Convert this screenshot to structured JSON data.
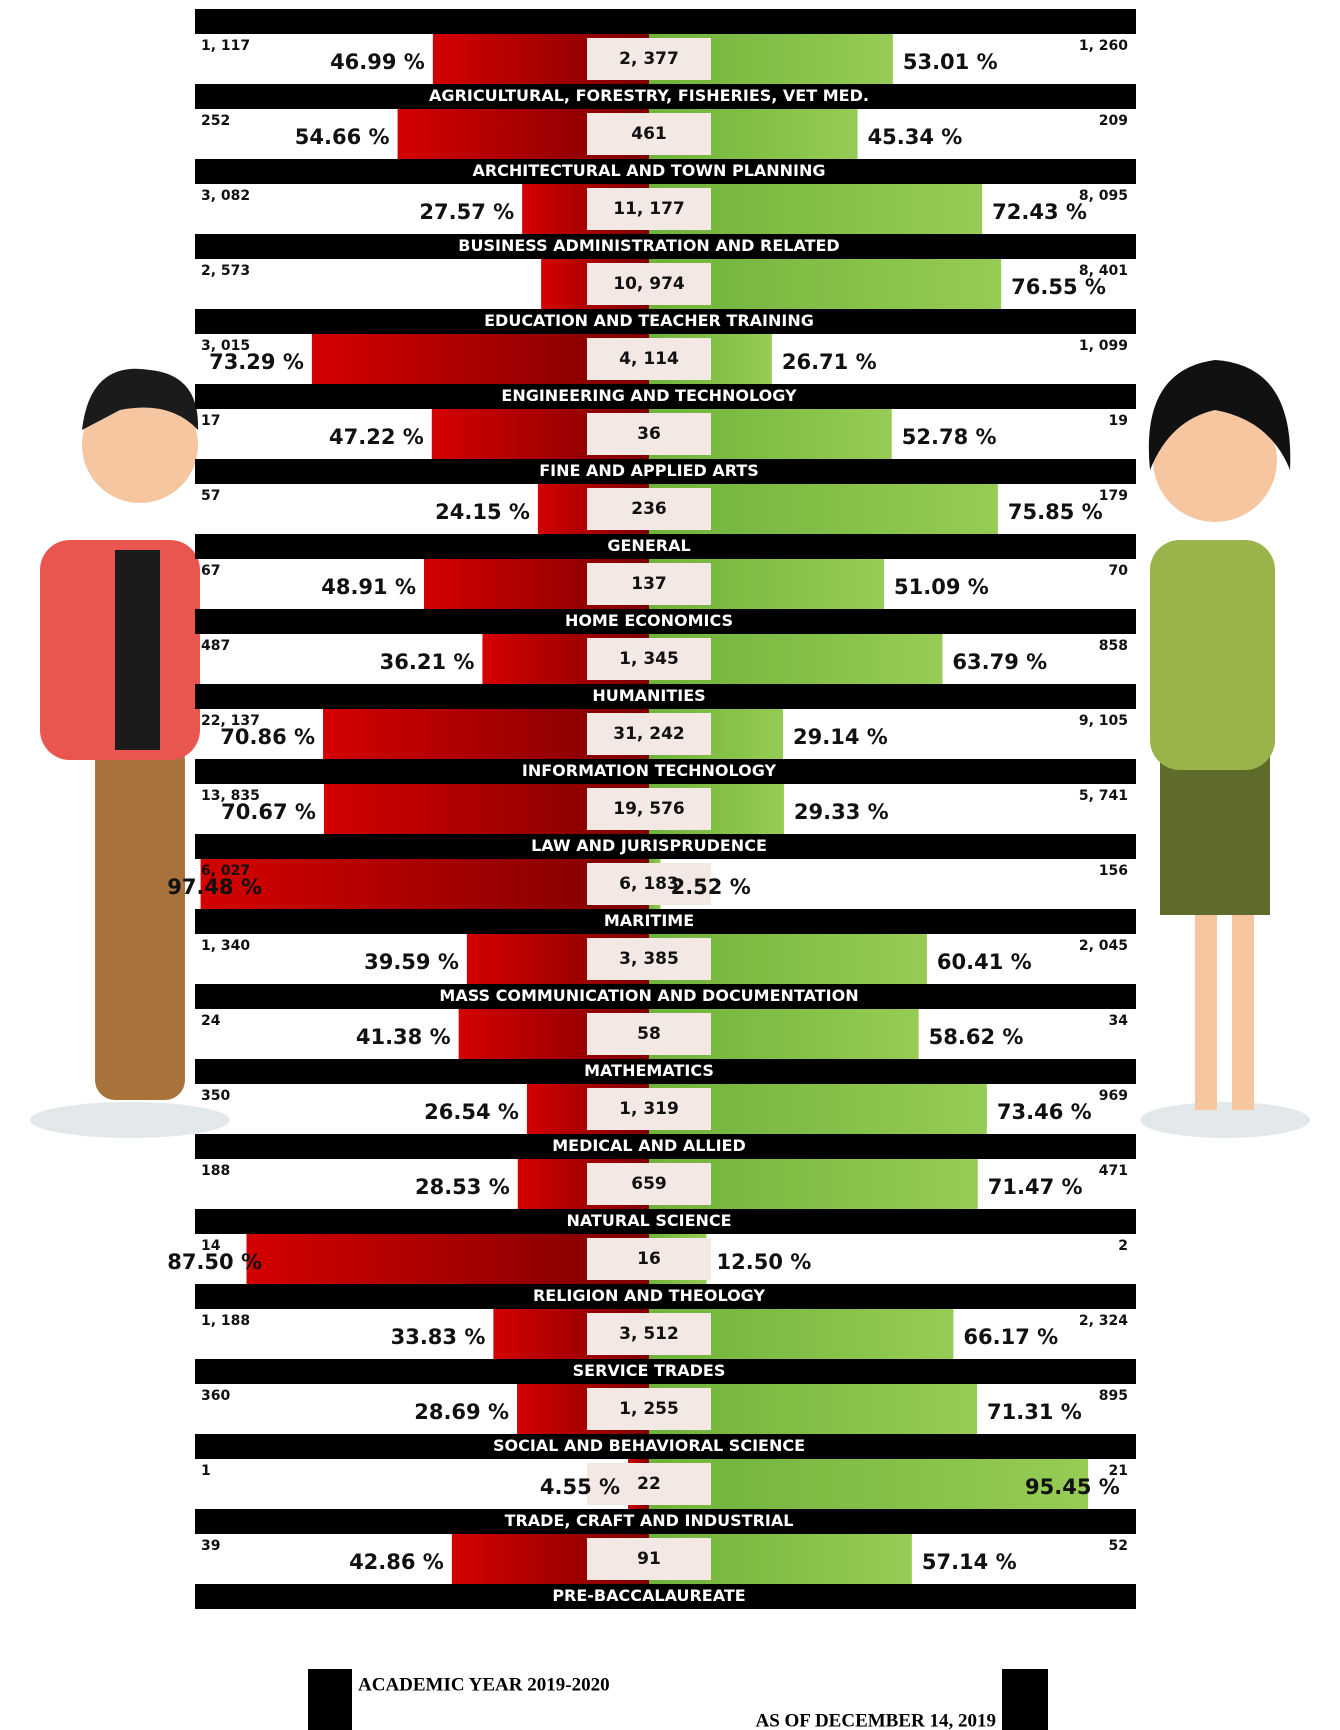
{
  "rows": [
    {
      "male": "1, 117",
      "male_pct": {
        "value": 46.99,
        "label": "46.99 %"
      },
      "total": "2, 377",
      "female": "1, 260",
      "female_pct": {
        "value": 53.01,
        "label": "53.01 %"
      },
      "label": "AGRICULTURAL, FORESTRY, FISHERIES, VET MED."
    },
    {
      "male": "252",
      "male_pct": {
        "value": 54.66,
        "label": "54.66 %"
      },
      "total": "461",
      "female": "209",
      "female_pct": {
        "value": 45.34,
        "label": "45.34 %"
      },
      "label": "ARCHITECTURAL AND TOWN PLANNING"
    },
    {
      "male": "3, 082",
      "male_pct": {
        "value": 27.57,
        "label": "27.57 %"
      },
      "total": "11, 177",
      "female": "8, 095",
      "female_pct": {
        "value": 72.43,
        "label": "72.43 %"
      },
      "label": "BUSINESS ADMINISTRATION AND RELATED"
    },
    {
      "male": "2, 573",
      "male_pct": 23.45,
      "total": "10, 974",
      "female": "8, 401",
      "female_pct": {
        "value": 76.55,
        "label": "76.55 %"
      },
      "label": "EDUCATION AND TEACHER TRAINING"
    },
    {
      "male": "3, 015",
      "male_pct": {
        "value": 73.29,
        "label": "73.29 %"
      },
      "total": "4, 114",
      "female": "1, 099",
      "female_pct": {
        "value": 26.71,
        "label": "26.71 %"
      },
      "label": "ENGINEERING AND TECHNOLOGY"
    },
    {
      "male": "17",
      "male_pct": {
        "value": 47.22,
        "label": "47.22 %"
      },
      "total": "36",
      "female": "19",
      "female_pct": {
        "value": 52.78,
        "label": "52.78 %"
      },
      "label": "FINE AND APPLIED ARTS"
    },
    {
      "male": "57",
      "male_pct": {
        "value": 24.15,
        "label": "24.15 %"
      },
      "total": "236",
      "female": "179",
      "female_pct": {
        "value": 75.85,
        "label": "75.85 %"
      },
      "label": "GENERAL"
    },
    {
      "male": "67",
      "male_pct": {
        "value": 48.91,
        "label": "48.91 %"
      },
      "total": "137",
      "female": "70",
      "female_pct": {
        "value": 51.09,
        "label": "51.09 %"
      },
      "label": "HOME ECONOMICS"
    },
    {
      "male": "487",
      "male_pct": {
        "value": 36.21,
        "label": "36.21 %"
      },
      "total": "1, 345",
      "female": "858",
      "female_pct": {
        "value": 63.79,
        "label": "63.79 %"
      },
      "label": "HUMANITIES"
    },
    {
      "male": "22, 137",
      "male_pct": {
        "value": 70.86,
        "label": "70.86 %"
      },
      "total": "31, 242",
      "female": "9, 105",
      "female_pct": {
        "value": 29.14,
        "label": "29.14 %"
      },
      "label": "INFORMATION TECHNOLOGY"
    },
    {
      "male": "13, 835",
      "male_pct": {
        "value": 70.67,
        "label": "70.67 %"
      },
      "total": "19, 576",
      "female": "5, 741",
      "female_pct": {
        "value": 29.33,
        "label": "29.33 %"
      },
      "label": "LAW AND JURISPRUDENCE"
    },
    {
      "male": "6, 027",
      "male_pct": {
        "value": 97.48,
        "label": "97.48 %"
      },
      "total": "6, 183",
      "female": "156",
      "female_pct": {
        "value": 2.52,
        "label": "2.52 %"
      },
      "label": "MARITIME"
    },
    {
      "male": "1, 340",
      "male_pct": {
        "value": 39.59,
        "label": "39.59 %"
      },
      "total": "3, 385",
      "female": "2, 045",
      "female_pct": {
        "value": 60.41,
        "label": "60.41 %"
      },
      "label": "MASS COMMUNICATION AND DOCUMENTATION"
    },
    {
      "male": "24",
      "male_pct": {
        "value": 41.38,
        "label": "41.38 %"
      },
      "total": "58",
      "female": "34",
      "female_pct": {
        "value": 58.62,
        "label": "58.62 %"
      },
      "label": "MATHEMATICS"
    },
    {
      "male": "350",
      "male_pct": {
        "value": 26.54,
        "label": "26.54 %"
      },
      "total": "1, 319",
      "female": "969",
      "female_pct": {
        "value": 73.46,
        "label": "73.46 %"
      },
      "label": "MEDICAL AND ALLIED"
    },
    {
      "male": "188",
      "male_pct": {
        "value": 28.53,
        "label": "28.53 %"
      },
      "total": "659",
      "female": "471",
      "female_pct": {
        "value": 71.47,
        "label": "71.47 %"
      },
      "label": "NATURAL SCIENCE"
    },
    {
      "male": "14",
      "male_pct": {
        "value": 87.5,
        "label": "87.50 %"
      },
      "total": "16",
      "female": "2",
      "female_pct": {
        "value": 12.5,
        "label": "12.50 %"
      },
      "label": "RELIGION AND THEOLOGY"
    },
    {
      "male": "1, 188",
      "male_pct": {
        "value": 33.83,
        "label": "33.83 %"
      },
      "total": "3, 512",
      "female": "2, 324",
      "female_pct": {
        "value": 66.17,
        "label": "66.17 %"
      },
      "label": "SERVICE TRADES"
    },
    {
      "male": "360",
      "male_pct": {
        "value": 28.69,
        "label": "28.69 %"
      },
      "total": "1, 255",
      "female": "895",
      "female_pct": {
        "value": 71.31,
        "label": "71.31 %"
      },
      "label": "SOCIAL AND BEHAVIORAL SCIENCE"
    },
    {
      "male": "1",
      "male_pct": {
        "value": 4.55,
        "label": "4.55 %"
      },
      "total": "22",
      "female": "21",
      "female_pct": {
        "value": 95.45,
        "label": "95.45 %"
      },
      "label": "TRADE, CRAFT AND INDUSTRIAL"
    },
    {
      "male": "39",
      "male_pct": {
        "value": 42.86,
        "label": "42.86 %"
      },
      "total": "91",
      "female": "52",
      "female_pct": {
        "value": 57.14,
        "label": "57.14 %"
      },
      "label": "PRE-BACCALAUREATE"
    }
  ],
  "footer": {
    "academic_year": "ACADEMIC YEAR 2019-2020",
    "as_of": "AS OF DECEMBER 14, 2019"
  }
}
